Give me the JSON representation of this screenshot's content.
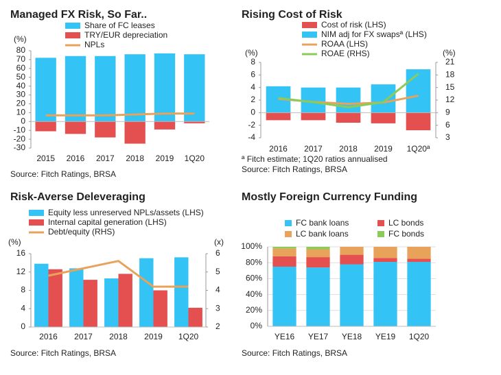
{
  "chart_data": [
    {
      "type": "bar",
      "title": "Managed FX Risk,  So Far..",
      "y_label": "(%)",
      "categories": [
        "2015",
        "2016",
        "2017",
        "2018",
        "2019",
        "1Q20"
      ],
      "series": [
        {
          "name": "Share of FC leases",
          "color": "#33c3f5",
          "values": [
            72,
            74,
            74,
            76,
            77,
            76
          ]
        },
        {
          "name": "TRY/EUR depreciation",
          "color": "#e4504f",
          "values": [
            -11,
            -14,
            -18,
            -25,
            -9,
            -2
          ]
        },
        {
          "name": "NPLs",
          "type": "line",
          "color": "#e8a25a",
          "values": [
            7,
            7,
            7,
            8,
            9,
            9
          ]
        }
      ],
      "ylim": [
        -30,
        80
      ],
      "yticks": [
        -30,
        -20,
        -10,
        0,
        10,
        20,
        30,
        40,
        50,
        60,
        70,
        80
      ],
      "stacked": true,
      "grid": false,
      "source": "Source: Fitch Ratings, BRSA"
    },
    {
      "type": "bar",
      "title": "Rising Cost of Risk",
      "y_label": "(%)",
      "y2_label": "(%)",
      "categories": [
        "2016",
        "2017",
        "2018",
        "2019",
        "1Q20ª"
      ],
      "series": [
        {
          "name": "Cost of risk (LHS)",
          "color": "#e4504f",
          "values": [
            -1.2,
            -1.2,
            -1.6,
            -1.7,
            -2.8
          ]
        },
        {
          "name": "NIM adj for FX swapsª (LHS)",
          "color": "#33c3f5",
          "values": [
            4.2,
            4.0,
            4.0,
            4.5,
            6.9
          ]
        },
        {
          "name": "ROAA (LHS)",
          "type": "line",
          "color": "#e8a25a",
          "values": [
            2.2,
            1.7,
            1.4,
            1.6,
            2.7
          ]
        },
        {
          "name": "ROAE (RHS)",
          "type": "line",
          "axis": "y2",
          "color": "#8acb5a",
          "values": [
            12.5,
            11.5,
            10.3,
            11.5,
            18.3
          ]
        }
      ],
      "ylim": [
        -4,
        8
      ],
      "yticks": [
        -4,
        -2,
        0,
        2,
        4,
        6,
        8
      ],
      "y2lim": [
        3,
        21
      ],
      "y2ticks": [
        3,
        6,
        9,
        12,
        15,
        18,
        21
      ],
      "stacked": true,
      "grid": false,
      "note": "ª Fitch estimate; 1Q20 ratios annualised",
      "source": "Source: Fitch Ratings, BRSA"
    },
    {
      "type": "bar",
      "title": "Risk-Averse Deleveraging",
      "y_label": "(%)",
      "y2_label": "(x)",
      "categories": [
        "2016",
        "2017",
        "2018",
        "2019",
        "1Q20"
      ],
      "series": [
        {
          "name": "Equity less unreserved NPLs/assets (LHS)",
          "color": "#33c3f5",
          "values": [
            13.8,
            12.8,
            10.6,
            15.0,
            15.2
          ]
        },
        {
          "name": "Internal capital generation (LHS)",
          "color": "#e4504f",
          "values": [
            12.6,
            10.3,
            11.6,
            8.0,
            4.2
          ]
        },
        {
          "name": "Debt/equity (RHS)",
          "type": "line",
          "axis": "y2",
          "color": "#e8a25a",
          "values": [
            4.8,
            5.2,
            5.6,
            4.2,
            4.2
          ]
        }
      ],
      "ylim": [
        0,
        16
      ],
      "yticks": [
        0,
        4,
        8,
        12,
        16
      ],
      "y2lim": [
        2,
        6
      ],
      "y2ticks": [
        2,
        3,
        4,
        5,
        6
      ],
      "stacked": false,
      "grid": false,
      "source": "Source: Fitch Ratings, BRSA"
    },
    {
      "type": "bar",
      "title": "Mostly Foreign Currency Funding",
      "categories": [
        "YE16",
        "YE17",
        "YE18",
        "YE19",
        "1Q20"
      ],
      "series": [
        {
          "name": "FC bank loans",
          "color": "#33c3f5",
          "values": [
            75,
            74,
            78,
            81,
            81
          ]
        },
        {
          "name": "LC bonds",
          "color": "#e4504f",
          "values": [
            13,
            13,
            12,
            5,
            4
          ]
        },
        {
          "name": "LC bank loans",
          "color": "#e8a25a",
          "values": [
            10,
            10,
            10,
            14,
            15
          ]
        },
        {
          "name": "FC bonds",
          "color": "#8acb5a",
          "values": [
            2,
            3,
            0,
            0,
            0
          ]
        }
      ],
      "ylim": [
        0,
        100
      ],
      "yticks": [
        {
          "value": 0,
          "label": "0%"
        },
        {
          "value": 20,
          "label": "20%"
        },
        {
          "value": 40,
          "label": "40%"
        },
        {
          "value": 60,
          "label": "60%"
        },
        {
          "value": 80,
          "label": "80%"
        },
        {
          "value": 100,
          "label": "100%"
        }
      ],
      "stacked": true,
      "grid": true,
      "source": "Source: Fitch Ratings, BRSA"
    }
  ]
}
